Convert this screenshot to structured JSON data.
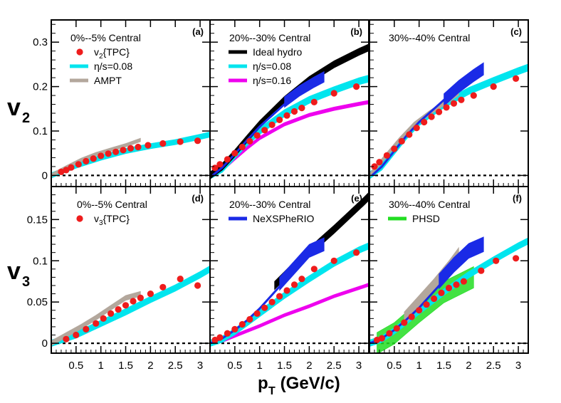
{
  "figure": {
    "ylabel_top": {
      "base": "v",
      "sub": "2"
    },
    "ylabel_bottom": {
      "base": "v",
      "sub": "3"
    },
    "xlabel": {
      "base": "p",
      "sub": "T",
      "unit": " (GeV/c)"
    }
  },
  "colors": {
    "tpc": "#ee1c1c",
    "hydro008": "#00e5ee",
    "hydro016": "#ee00ee",
    "ideal": "#000000",
    "ampt": "#b3a79c",
    "nexspherio": "#1a2ae6",
    "phsd": "#22dd22"
  },
  "chart_data": {
    "type": "scatter",
    "xlabel": "p_T (GeV/c)",
    "ylabels": {
      "top_row": "v_2",
      "bottom_row": "v_3"
    },
    "xlim": [
      0,
      3.2
    ],
    "ylim_top": [
      -0.025,
      0.35
    ],
    "ylim_bottom": [
      -0.012,
      0.19
    ],
    "x_ticks": [
      "0.5",
      "1",
      "1.5",
      "2",
      "2.5",
      "3"
    ],
    "y_ticks_top": [
      "0",
      "0.1",
      "0.2",
      "0.3"
    ],
    "y_ticks_bottom": [
      "0",
      "0.05",
      "0.1",
      "0.15"
    ],
    "panels": [
      {
        "id": "a",
        "letter": "(a)",
        "title": "0%--5% Central",
        "legend": [
          {
            "key": "tpc",
            "label": "v",
            "sub": "2",
            "after": "{TPC}"
          },
          {
            "key": "hydro008",
            "label": "η/s=0.08"
          },
          {
            "key": "ampt",
            "label": "AMPT"
          }
        ],
        "tpc": {
          "x": [
            0.2,
            0.3,
            0.4,
            0.55,
            0.7,
            0.85,
            1.0,
            1.15,
            1.3,
            1.45,
            1.6,
            1.75,
            1.95,
            2.25,
            2.6,
            2.95
          ],
          "y": [
            0.008,
            0.012,
            0.018,
            0.025,
            0.032,
            0.038,
            0.044,
            0.049,
            0.053,
            0.057,
            0.061,
            0.064,
            0.068,
            0.072,
            0.076,
            0.078
          ]
        },
        "hydro008": {
          "x": [
            0,
            0.5,
            1.0,
            1.5,
            2.0,
            2.5,
            3.0,
            3.2
          ],
          "y": [
            0,
            0.022,
            0.04,
            0.055,
            0.066,
            0.075,
            0.087,
            0.092
          ],
          "width": 0.006
        },
        "ampt": {
          "x": [
            0,
            0.3,
            0.6,
            0.9,
            1.2,
            1.5,
            1.8
          ],
          "y": [
            0,
            0.018,
            0.035,
            0.048,
            0.058,
            0.068,
            0.08
          ],
          "width": 0.004
        }
      },
      {
        "id": "b",
        "letter": "(b)",
        "title": "20%--30% Central",
        "legend": [
          {
            "key": "ideal",
            "label": "Ideal hydro"
          },
          {
            "key": "hydro008",
            "label": "η/s=0.08"
          },
          {
            "key": "hydro016",
            "label": "η/s=0.16"
          }
        ],
        "tpc": {
          "x": [
            0.1,
            0.2,
            0.35,
            0.5,
            0.65,
            0.8,
            0.95,
            1.1,
            1.25,
            1.4,
            1.55,
            1.7,
            1.85,
            2.1,
            2.5,
            2.95
          ],
          "y": [
            0.017,
            0.025,
            0.036,
            0.05,
            0.064,
            0.077,
            0.09,
            0.102,
            0.114,
            0.125,
            0.135,
            0.144,
            0.152,
            0.165,
            0.185,
            0.2
          ]
        },
        "hydro008": {
          "x": [
            0,
            0.25,
            0.5,
            0.75,
            1.0,
            1.5,
            2.0,
            2.5,
            3.0,
            3.2
          ],
          "y": [
            0,
            0.015,
            0.045,
            0.075,
            0.1,
            0.14,
            0.17,
            0.192,
            0.212,
            0.218
          ],
          "width": 0.008
        },
        "hydro016": {
          "x": [
            0,
            0.25,
            0.5,
            0.75,
            1.0,
            1.5,
            2.0,
            2.5,
            3.0,
            3.2
          ],
          "y": [
            0,
            0.013,
            0.038,
            0.062,
            0.084,
            0.115,
            0.136,
            0.15,
            0.161,
            0.165
          ],
          "width": 0.004
        },
        "ideal": {
          "x": [
            0,
            0.25,
            0.5,
            0.75,
            1.0,
            1.5,
            2.0,
            2.5,
            3.0,
            3.2
          ],
          "y": [
            0,
            0.02,
            0.05,
            0.083,
            0.115,
            0.17,
            0.215,
            0.25,
            0.278,
            0.288
          ],
          "width": 0.008
        },
        "nexspherio": {
          "x": [
            0.05,
            0.25,
            0.5,
            0.75,
            1.0,
            1.4,
            1.8,
            2.1
          ],
          "y": [
            0,
            0.018,
            0.048,
            0.08,
            0.11,
            0.15,
            0.19,
            0.215
          ],
          "width": 0.003
        },
        "nexband": {
          "x": [
            1.5,
            1.8,
            2.1,
            2.3
          ],
          "y": [
            0.165,
            0.19,
            0.21,
            0.222
          ],
          "width": 0.012
        }
      },
      {
        "id": "c",
        "letter": "(c)",
        "title": "30%--40% Central",
        "legend": [],
        "tpc": {
          "x": [
            0.1,
            0.2,
            0.35,
            0.5,
            0.65,
            0.8,
            0.95,
            1.1,
            1.25,
            1.4,
            1.55,
            1.7,
            1.85,
            2.1,
            2.5,
            2.95
          ],
          "y": [
            0.02,
            0.03,
            0.045,
            0.06,
            0.077,
            0.092,
            0.107,
            0.12,
            0.132,
            0.143,
            0.153,
            0.162,
            0.17,
            0.18,
            0.2,
            0.218
          ]
        },
        "hydro008": {
          "x": [
            0,
            0.25,
            0.5,
            0.75,
            1.0,
            1.5,
            2.0,
            2.5,
            3.0,
            3.2
          ],
          "y": [
            0,
            0.02,
            0.055,
            0.09,
            0.12,
            0.16,
            0.19,
            0.213,
            0.235,
            0.243
          ],
          "width": 0.008
        },
        "ampt": {
          "x": [
            0,
            0.3,
            0.6,
            0.9,
            1.2,
            1.5,
            1.8
          ],
          "y": [
            0,
            0.04,
            0.08,
            0.115,
            0.14,
            0.162,
            0.185
          ],
          "width": 0.005
        },
        "nexspherio": {
          "x": [
            0.05,
            0.25,
            0.5,
            0.75,
            1.0,
            1.4,
            1.8,
            2.1
          ],
          "y": [
            0,
            0.02,
            0.055,
            0.09,
            0.12,
            0.16,
            0.2,
            0.225
          ],
          "width": 0.003
        },
        "nexband": {
          "x": [
            1.5,
            1.8,
            2.1,
            2.3
          ],
          "y": [
            0.17,
            0.2,
            0.225,
            0.24
          ],
          "width": 0.014
        }
      },
      {
        "id": "d",
        "letter": "(d)",
        "title": "0%--5% Central",
        "legend": [
          {
            "key": "tpc",
            "label": "v",
            "sub": "3",
            "after": "{TPC}"
          }
        ],
        "tpc": {
          "x": [
            0.3,
            0.5,
            0.7,
            0.9,
            1.05,
            1.2,
            1.35,
            1.5,
            1.65,
            1.8,
            2.0,
            2.25,
            2.6,
            2.95
          ],
          "y": [
            0.005,
            0.01,
            0.017,
            0.024,
            0.03,
            0.036,
            0.041,
            0.046,
            0.051,
            0.055,
            0.06,
            0.068,
            0.078,
            0.07
          ]
        },
        "hydro008": {
          "x": [
            0,
            0.5,
            1.0,
            1.5,
            2.0,
            2.5,
            3.0,
            3.2
          ],
          "y": [
            0,
            0.01,
            0.024,
            0.038,
            0.053,
            0.067,
            0.083,
            0.09
          ],
          "width": 0.004
        },
        "ampt": {
          "x": [
            0,
            0.3,
            0.6,
            0.9,
            1.2,
            1.5,
            1.8
          ],
          "y": [
            0,
            0.01,
            0.02,
            0.031,
            0.043,
            0.055,
            0.06
          ],
          "width": 0.003
        }
      },
      {
        "id": "e",
        "letter": "(e)",
        "title": "20%--30% Central",
        "legend": [
          {
            "key": "nexspherio",
            "label": "NeXSPheRIO"
          }
        ],
        "tpc": {
          "x": [
            0.1,
            0.2,
            0.35,
            0.5,
            0.65,
            0.8,
            0.95,
            1.1,
            1.25,
            1.4,
            1.55,
            1.7,
            1.85,
            2.1,
            2.5,
            2.95
          ],
          "y": [
            0.004,
            0.007,
            0.012,
            0.017,
            0.023,
            0.029,
            0.036,
            0.043,
            0.05,
            0.057,
            0.064,
            0.071,
            0.078,
            0.09,
            0.1,
            0.11
          ]
        },
        "hydro008": {
          "x": [
            0,
            0.25,
            0.5,
            0.75,
            1.0,
            1.5,
            2.0,
            2.5,
            3.0,
            3.2
          ],
          "y": [
            0,
            0.005,
            0.014,
            0.025,
            0.036,
            0.058,
            0.078,
            0.097,
            0.113,
            0.118
          ],
          "width": 0.004
        },
        "hydro016": {
          "x": [
            0,
            0.25,
            0.5,
            0.75,
            1.0,
            1.5,
            2.0,
            2.5,
            3.0,
            3.2
          ],
          "y": [
            0,
            0.003,
            0.009,
            0.015,
            0.021,
            0.034,
            0.045,
            0.057,
            0.067,
            0.071
          ],
          "width": 0.002
        },
        "ideal": {
          "x": [
            1.3,
            1.6,
            1.9,
            2.2,
            2.5,
            2.8,
            3.1,
            3.2
          ],
          "y": [
            0.07,
            0.088,
            0.105,
            0.122,
            0.138,
            0.155,
            0.172,
            0.178
          ],
          "width": 0.005
        },
        "nexspherio": {
          "x": [
            0,
            0.25,
            0.5,
            0.75,
            1.0,
            1.3,
            1.6,
            1.8
          ],
          "y": [
            0,
            0.006,
            0.016,
            0.028,
            0.042,
            0.062,
            0.082,
            0.096
          ],
          "width": 0.002
        },
        "nexband": {
          "x": [
            1.4,
            1.7,
            2.0,
            2.3
          ],
          "y": [
            0.072,
            0.092,
            0.112,
            0.12
          ],
          "width": 0.008
        }
      },
      {
        "id": "f",
        "letter": "(f)",
        "title": "30%--40% Central",
        "legend": [
          {
            "key": "phsd",
            "label": "PHSD"
          }
        ],
        "tpc": {
          "x": [
            0.15,
            0.25,
            0.4,
            0.55,
            0.7,
            0.85,
            1.0,
            1.15,
            1.3,
            1.45,
            1.6,
            1.75,
            1.9,
            2.25,
            2.55,
            2.95
          ],
          "y": [
            0.004,
            0.006,
            0.012,
            0.018,
            0.025,
            0.032,
            0.04,
            0.047,
            0.054,
            0.061,
            0.067,
            0.071,
            0.075,
            0.088,
            0.1,
            0.103
          ]
        },
        "hydro008": {
          "x": [
            0,
            0.25,
            0.5,
            0.75,
            1.0,
            1.5,
            2.0,
            2.5,
            3.0,
            3.2
          ],
          "y": [
            0,
            0.005,
            0.015,
            0.027,
            0.039,
            0.062,
            0.083,
            0.101,
            0.118,
            0.124
          ],
          "width": 0.004
        },
        "ampt": {
          "x": [
            0.7,
            1.0,
            1.3,
            1.6,
            1.8
          ],
          "y": [
            0.03,
            0.05,
            0.07,
            0.092,
            0.108
          ],
          "width": 0.008
        },
        "nexspherio": {
          "x": [
            0,
            0.25,
            0.5,
            0.75,
            1.0,
            1.3,
            1.6,
            1.8
          ],
          "y": [
            0,
            0.006,
            0.016,
            0.029,
            0.043,
            0.063,
            0.083,
            0.097
          ],
          "width": 0.002
        },
        "nexband": {
          "x": [
            1.4,
            1.7,
            2.0,
            2.3
          ],
          "y": [
            0.075,
            0.095,
            0.112,
            0.12
          ],
          "width": 0.009
        },
        "phsd": {
          "x": [
            0.15,
            0.5,
            1.0,
            1.5,
            2.1
          ],
          "y": [
            0.0,
            0.012,
            0.038,
            0.062,
            0.08
          ],
          "width": 0.013
        }
      }
    ]
  }
}
